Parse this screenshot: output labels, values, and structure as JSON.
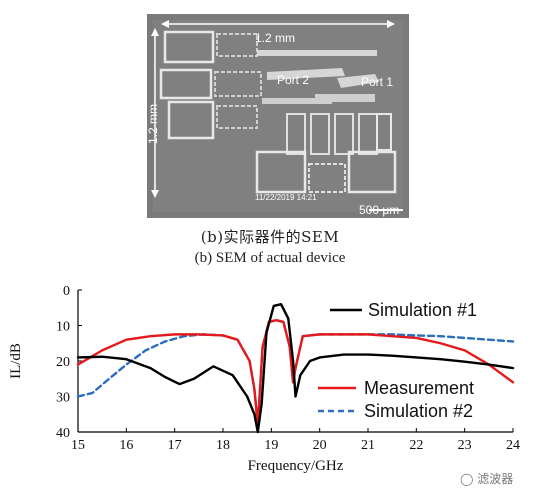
{
  "sem": {
    "width_label": "1.2 mm",
    "height_label": "1.2 mm",
    "port2_label": "Port 2",
    "port1_label": "Port 1",
    "timestamp": "11/22/2019 14:21",
    "scalebar_label": "500 μm"
  },
  "captions": {
    "zh": "(b)实际器件的SEM",
    "en": "(b) SEM of actual device"
  },
  "watermark": "滤波器",
  "chart_data": {
    "type": "line",
    "xlabel": "Frequency/GHz",
    "ylabel": "IL/dB",
    "xlim": [
      15,
      24
    ],
    "ylim": [
      0,
      40
    ],
    "y_inverted": true,
    "xticks": [
      15,
      16,
      17,
      18,
      19,
      20,
      21,
      22,
      23,
      24
    ],
    "yticks": [
      0,
      10,
      20,
      30,
      40
    ],
    "legend": [
      "Simulation #1",
      "Measurement",
      "Simulation #2"
    ],
    "series": [
      {
        "name": "Simulation #1",
        "color": "#000000",
        "style": "solid",
        "x": [
          15,
          15.5,
          16,
          16.5,
          16.8,
          17.1,
          17.4,
          17.8,
          18.2,
          18.5,
          18.65,
          18.72,
          18.8,
          18.9,
          19.05,
          19.2,
          19.35,
          19.45,
          19.5,
          19.6,
          19.8,
          20,
          20.5,
          21,
          21.5,
          22,
          22.5,
          23,
          23.5,
          24
        ],
        "y": [
          19,
          18.8,
          19.5,
          22,
          24.5,
          26.5,
          25,
          21.5,
          24,
          30,
          35,
          40,
          32,
          12,
          4.5,
          4,
          8,
          20,
          30,
          24,
          20,
          19,
          18.2,
          18.2,
          18.5,
          19,
          19.5,
          20.2,
          21,
          22
        ]
      },
      {
        "name": "Measurement",
        "color": "#e41a1c",
        "style": "solid",
        "x": [
          15,
          15.5,
          16,
          16.5,
          17,
          17.5,
          18,
          18.3,
          18.55,
          18.65,
          18.72,
          18.82,
          18.95,
          19.1,
          19.25,
          19.38,
          19.45,
          19.5,
          19.65,
          20,
          20.5,
          21,
          21.5,
          22,
          22.5,
          23,
          23.5,
          24
        ],
        "y": [
          21,
          17,
          14,
          13,
          12.5,
          12.5,
          12.8,
          14,
          20,
          28,
          38,
          16,
          9,
          8.5,
          9,
          16,
          26,
          22,
          13,
          12.5,
          12.5,
          12.5,
          13,
          13.5,
          15,
          17,
          21,
          26
        ]
      },
      {
        "name": "Simulation #2",
        "color": "#2a6ebd",
        "style": "dashed",
        "x": [
          15,
          15.3,
          15.6,
          16,
          16.4,
          16.8,
          17.2,
          17.6,
          18,
          18.3,
          18.55,
          18.65,
          18.72,
          18.82,
          18.95,
          19.1,
          19.25,
          19.38,
          19.45,
          19.5,
          19.65,
          20,
          20.5,
          21,
          21.5,
          22,
          22.5,
          23,
          23.5,
          24
        ],
        "y": [
          30,
          29,
          25.5,
          21,
          17,
          14.5,
          13,
          12.5,
          12.8,
          14,
          20,
          28,
          38,
          16,
          9,
          8.5,
          9,
          16,
          26,
          22,
          13,
          12.5,
          12.5,
          12.5,
          12.5,
          12.8,
          13,
          13.5,
          14,
          14.5
        ]
      }
    ]
  }
}
